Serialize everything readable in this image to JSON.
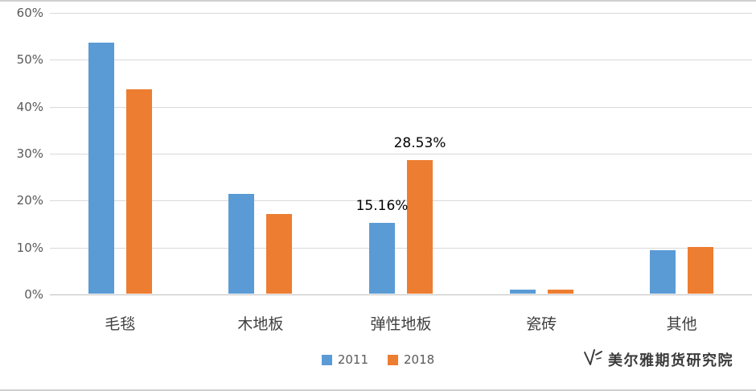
{
  "page": {
    "background": "#ffffff"
  },
  "watermark": {
    "text": "美尔雅期货研究院"
  },
  "chart_data": {
    "type": "bar",
    "title": "",
    "categories": [
      "毛毯",
      "木地板",
      "弹性地板",
      "瓷砖",
      "其他"
    ],
    "series": [
      {
        "name": "2011",
        "color": "#5B9BD5",
        "values": [
          53.5,
          21.3,
          15.16,
          0.8,
          9.2
        ]
      },
      {
        "name": "2018",
        "color": "#ED7D31",
        "values": [
          43.5,
          17.0,
          28.53,
          0.8,
          10.0
        ]
      }
    ],
    "data_labels": [
      {
        "category_index": 2,
        "series_index": 0,
        "text": "15.16%"
      },
      {
        "category_index": 2,
        "series_index": 1,
        "text": "28.53%"
      }
    ],
    "xlabel": "",
    "ylabel": "",
    "ylim": [
      0,
      60
    ],
    "ytick_step": 10,
    "ytick_labels": [
      "0%",
      "10%",
      "20%",
      "30%",
      "40%",
      "50%",
      "60%"
    ],
    "grid": true,
    "legend_position": "bottom",
    "colors": {
      "gridline": "#d9d9d9",
      "axis_text": "#595959"
    }
  }
}
